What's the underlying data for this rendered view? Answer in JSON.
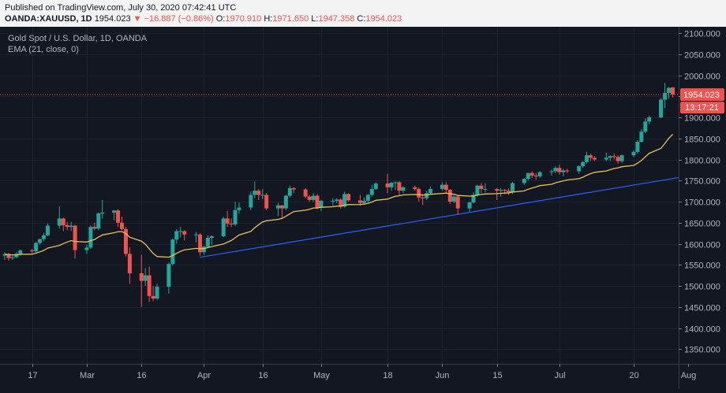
{
  "header": {
    "published": "Published on TradingView.com, July 30, 2020 07:42:41 UTC",
    "symbol": "OANDA:XAUUSD, 1D",
    "last": "1954.023",
    "arrow": "▼",
    "change": "−16.887 (−0.86%)",
    "o_label": "O:",
    "o_value": "1970.910",
    "h_label": "H:",
    "h_value": "1971.650",
    "l_label": "L:",
    "l_value": "1947.358",
    "c_label": "C:",
    "c_value": "1954.023"
  },
  "legend": {
    "title": "Gold Spot / U.S. Dollar, 1D, OANDA",
    "indicator": "EMA (21, close, 0)"
  },
  "price_badge": {
    "value": "1954.023",
    "countdown": "13:17:21"
  },
  "colors": {
    "up": "#26a69a",
    "down": "#ef5350",
    "ema": "#e6c15a",
    "trendline": "#2962ff",
    "background": "#131722"
  },
  "chart_data": {
    "type": "candlestick",
    "y_ticks": [
      "2100.000",
      "2050.000",
      "2000.000",
      "1950.000",
      "1900.000",
      "1850.000",
      "1800.000",
      "1750.000",
      "1700.000",
      "1650.000",
      "1600.000",
      "1550.000",
      "1500.000",
      "1450.000",
      "1400.000",
      "1350.000"
    ],
    "ylim": [
      1315,
      2115
    ],
    "x_ticks": [
      {
        "label": "17",
        "date": "2020-02-17"
      },
      {
        "label": "Mar",
        "date": "2020-03-02"
      },
      {
        "label": "16",
        "date": "2020-03-16"
      },
      {
        "label": "Apr",
        "date": "2020-04-01"
      },
      {
        "label": "16",
        "date": "2020-04-16"
      },
      {
        "label": "May",
        "date": "2020-05-01"
      },
      {
        "label": "18",
        "date": "2020-05-18"
      },
      {
        "label": "Jun",
        "date": "2020-06-01"
      },
      {
        "label": "15",
        "date": "2020-06-15"
      },
      {
        "label": "Jul",
        "date": "2020-07-01"
      },
      {
        "label": "20",
        "date": "2020-07-20"
      },
      {
        "label": "Aug",
        "date": "2020-08-03"
      }
    ],
    "last_price": 1954.023,
    "trendline": [
      {
        "date": "2020-03-31",
        "value": 1568
      },
      {
        "date": "2020-08-05",
        "value": 1764
      }
    ],
    "ohlc": [
      [
        "2020-02-10",
        1572,
        1580,
        1562,
        1575
      ],
      [
        "2020-02-11",
        1575,
        1578,
        1560,
        1566
      ],
      [
        "2020-02-12",
        1566,
        1574,
        1562,
        1568
      ],
      [
        "2020-02-13",
        1568,
        1580,
        1566,
        1576
      ],
      [
        "2020-02-14",
        1576,
        1586,
        1572,
        1584
      ],
      [
        "2020-02-17",
        1584,
        1588,
        1578,
        1582
      ],
      [
        "2020-02-18",
        1582,
        1604,
        1580,
        1602
      ],
      [
        "2020-02-19",
        1602,
        1612,
        1598,
        1611
      ],
      [
        "2020-02-20",
        1611,
        1626,
        1606,
        1620
      ],
      [
        "2020-02-21",
        1620,
        1648,
        1618,
        1643
      ],
      [
        "2020-02-24",
        1643,
        1689,
        1636,
        1660
      ],
      [
        "2020-02-25",
        1660,
        1662,
        1630,
        1644
      ],
      [
        "2020-02-26",
        1644,
        1652,
        1632,
        1640
      ],
      [
        "2020-02-27",
        1640,
        1652,
        1630,
        1643
      ],
      [
        "2020-02-28",
        1643,
        1645,
        1565,
        1585
      ],
      [
        "2020-03-02",
        1585,
        1598,
        1576,
        1591
      ],
      [
        "2020-03-03",
        1591,
        1644,
        1588,
        1640
      ],
      [
        "2020-03-04",
        1640,
        1650,
        1632,
        1636
      ],
      [
        "2020-03-05",
        1636,
        1674,
        1632,
        1672
      ],
      [
        "2020-03-06",
        1672,
        1704,
        1660,
        1674
      ],
      [
        "2020-03-09",
        1674,
        1680,
        1656,
        1679
      ],
      [
        "2020-03-10",
        1679,
        1682,
        1640,
        1650
      ],
      [
        "2020-03-11",
        1650,
        1664,
        1632,
        1635
      ],
      [
        "2020-03-12",
        1635,
        1640,
        1570,
        1576
      ],
      [
        "2020-03-13",
        1576,
        1592,
        1505,
        1530
      ],
      [
        "2020-03-16",
        1530,
        1574,
        1450,
        1512
      ],
      [
        "2020-03-17",
        1512,
        1542,
        1500,
        1525
      ],
      [
        "2020-03-18",
        1525,
        1546,
        1462,
        1476
      ],
      [
        "2020-03-19",
        1476,
        1500,
        1464,
        1470
      ],
      [
        "2020-03-20",
        1470,
        1505,
        1466,
        1498
      ],
      [
        "2020-03-23",
        1498,
        1555,
        1482,
        1552
      ],
      [
        "2020-03-24",
        1552,
        1612,
        1548,
        1610
      ],
      [
        "2020-03-25",
        1610,
        1635,
        1600,
        1630
      ],
      [
        "2020-03-26",
        1630,
        1640,
        1615,
        1630
      ],
      [
        "2020-03-27",
        1630,
        1632,
        1608,
        1622
      ],
      [
        "2020-03-30",
        1622,
        1628,
        1603,
        1622
      ],
      [
        "2020-03-31",
        1622,
        1625,
        1572,
        1580
      ],
      [
        "2020-04-01",
        1580,
        1595,
        1574,
        1593
      ],
      [
        "2020-04-02",
        1593,
        1620,
        1590,
        1614
      ],
      [
        "2020-04-03",
        1614,
        1620,
        1598,
        1618
      ],
      [
        "2020-04-06",
        1618,
        1664,
        1616,
        1660
      ],
      [
        "2020-04-07",
        1660,
        1678,
        1640,
        1648
      ],
      [
        "2020-04-08",
        1648,
        1660,
        1640,
        1646
      ],
      [
        "2020-04-09",
        1646,
        1700,
        1642,
        1680
      ],
      [
        "2020-04-10",
        1680,
        1698,
        1672,
        1686
      ],
      [
        "2020-04-13",
        1686,
        1724,
        1680,
        1716
      ],
      [
        "2020-04-14",
        1716,
        1748,
        1708,
        1726
      ],
      [
        "2020-04-15",
        1726,
        1730,
        1704,
        1716
      ],
      [
        "2020-04-16",
        1716,
        1730,
        1706,
        1716
      ],
      [
        "2020-04-17",
        1716,
        1720,
        1680,
        1684
      ],
      [
        "2020-04-20",
        1684,
        1697,
        1666,
        1691
      ],
      [
        "2020-04-21",
        1691,
        1692,
        1660,
        1684
      ],
      [
        "2020-04-22",
        1684,
        1716,
        1680,
        1714
      ],
      [
        "2020-04-23",
        1714,
        1738,
        1710,
        1732
      ],
      [
        "2020-04-24",
        1732,
        1734,
        1720,
        1729
      ],
      [
        "2020-04-27",
        1729,
        1732,
        1708,
        1712
      ],
      [
        "2020-04-28",
        1712,
        1716,
        1700,
        1704
      ],
      [
        "2020-04-29",
        1704,
        1720,
        1700,
        1714
      ],
      [
        "2020-04-30",
        1714,
        1718,
        1682,
        1686
      ],
      [
        "2020-05-01",
        1686,
        1704,
        1678,
        1702
      ],
      [
        "2020-05-04",
        1702,
        1708,
        1690,
        1702
      ],
      [
        "2020-05-05",
        1702,
        1708,
        1696,
        1705
      ],
      [
        "2020-05-06",
        1705,
        1708,
        1684,
        1688
      ],
      [
        "2020-05-07",
        1688,
        1724,
        1686,
        1718
      ],
      [
        "2020-05-08",
        1718,
        1720,
        1700,
        1703
      ],
      [
        "2020-05-11",
        1703,
        1716,
        1690,
        1697
      ],
      [
        "2020-05-12",
        1697,
        1710,
        1694,
        1702
      ],
      [
        "2020-05-13",
        1702,
        1718,
        1698,
        1716
      ],
      [
        "2020-05-14",
        1716,
        1740,
        1712,
        1730
      ],
      [
        "2020-05-15",
        1730,
        1746,
        1728,
        1743
      ],
      [
        "2020-05-18",
        1743,
        1766,
        1720,
        1734
      ],
      [
        "2020-05-19",
        1734,
        1746,
        1726,
        1745
      ],
      [
        "2020-05-20",
        1745,
        1748,
        1728,
        1746
      ],
      [
        "2020-05-21",
        1746,
        1748,
        1716,
        1726
      ],
      [
        "2020-05-22",
        1726,
        1737,
        1720,
        1734
      ],
      [
        "2020-05-25",
        1734,
        1738,
        1726,
        1730
      ],
      [
        "2020-05-26",
        1730,
        1734,
        1700,
        1710
      ],
      [
        "2020-05-27",
        1710,
        1718,
        1692,
        1708
      ],
      [
        "2020-05-28",
        1708,
        1726,
        1704,
        1720
      ],
      [
        "2020-05-29",
        1720,
        1736,
        1716,
        1730
      ],
      [
        "2020-06-01",
        1730,
        1746,
        1726,
        1740
      ],
      [
        "2020-06-02",
        1740,
        1746,
        1722,
        1728
      ],
      [
        "2020-06-03",
        1728,
        1730,
        1694,
        1700
      ],
      [
        "2020-06-04",
        1700,
        1716,
        1696,
        1712
      ],
      [
        "2020-06-05",
        1712,
        1716,
        1670,
        1684
      ],
      [
        "2020-06-08",
        1684,
        1700,
        1676,
        1698
      ],
      [
        "2020-06-09",
        1698,
        1722,
        1696,
        1716
      ],
      [
        "2020-06-10",
        1716,
        1740,
        1712,
        1738
      ],
      [
        "2020-06-11",
        1738,
        1744,
        1720,
        1730
      ],
      [
        "2020-06-12",
        1730,
        1744,
        1722,
        1730
      ],
      [
        "2020-06-15",
        1730,
        1732,
        1704,
        1726
      ],
      [
        "2020-06-16",
        1726,
        1732,
        1712,
        1728
      ],
      [
        "2020-06-17",
        1728,
        1730,
        1718,
        1726
      ],
      [
        "2020-06-18",
        1726,
        1732,
        1716,
        1722
      ],
      [
        "2020-06-19",
        1722,
        1746,
        1718,
        1744
      ],
      [
        "2020-06-22",
        1744,
        1756,
        1740,
        1754
      ],
      [
        "2020-06-23",
        1754,
        1768,
        1750,
        1768
      ],
      [
        "2020-06-24",
        1768,
        1772,
        1756,
        1762
      ],
      [
        "2020-06-25",
        1762,
        1768,
        1752,
        1760
      ],
      [
        "2020-06-26",
        1760,
        1772,
        1756,
        1770
      ],
      [
        "2020-06-29",
        1770,
        1776,
        1762,
        1772
      ],
      [
        "2020-06-30",
        1772,
        1784,
        1768,
        1780
      ],
      [
        "2020-07-01",
        1780,
        1788,
        1764,
        1770
      ],
      [
        "2020-07-02",
        1770,
        1778,
        1760,
        1774
      ],
      [
        "2020-07-03",
        1774,
        1778,
        1768,
        1772
      ],
      [
        "2020-07-06",
        1772,
        1786,
        1766,
        1784
      ],
      [
        "2020-07-07",
        1784,
        1796,
        1780,
        1794
      ],
      [
        "2020-07-08",
        1794,
        1818,
        1790,
        1810
      ],
      [
        "2020-07-09",
        1810,
        1814,
        1796,
        1804
      ],
      [
        "2020-07-10",
        1804,
        1808,
        1796,
        1800
      ],
      [
        "2020-07-13",
        1800,
        1816,
        1796,
        1804
      ],
      [
        "2020-07-14",
        1804,
        1810,
        1796,
        1808
      ],
      [
        "2020-07-15",
        1808,
        1814,
        1800,
        1806
      ],
      [
        "2020-07-16",
        1806,
        1810,
        1790,
        1796
      ],
      [
        "2020-07-17",
        1796,
        1812,
        1792,
        1810
      ],
      [
        "2020-07-20",
        1810,
        1822,
        1806,
        1818
      ],
      [
        "2020-07-21",
        1818,
        1846,
        1814,
        1842
      ],
      [
        "2020-07-22",
        1842,
        1872,
        1840,
        1866
      ],
      [
        "2020-07-23",
        1866,
        1898,
        1862,
        1890
      ],
      [
        "2020-07-24",
        1890,
        1904,
        1884,
        1900
      ],
      [
        "2020-07-27",
        1900,
        1946,
        1898,
        1942
      ],
      [
        "2020-07-28",
        1942,
        1982,
        1922,
        1958
      ],
      [
        "2020-07-29",
        1958,
        1972,
        1944,
        1970
      ],
      [
        "2020-07-30",
        1971,
        1972,
        1947,
        1954
      ]
    ]
  }
}
